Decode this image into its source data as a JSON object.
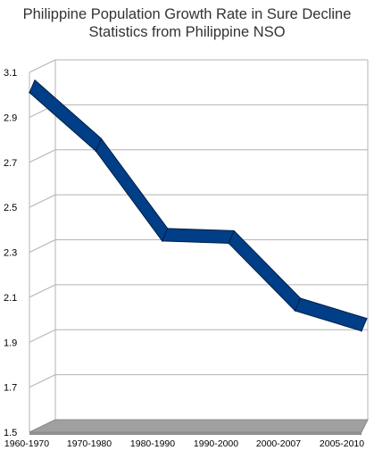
{
  "chart_data": {
    "type": "line",
    "title": "Philippine Population Growth Rate in Sure Decline",
    "subtitle": "Statistics from Philippine NSO",
    "categories": [
      "1960-1970",
      "1970-1980",
      "1980-1990",
      "1990-2000",
      "2000-2007",
      "2005-2010"
    ],
    "series": [
      {
        "values": [
          3.01,
          2.75,
          2.35,
          2.34,
          2.04,
          1.95
        ]
      }
    ],
    "y_ticks": [
      "1.5",
      "1.7",
      "1.9",
      "2.1",
      "2.3",
      "2.5",
      "2.7",
      "2.9",
      "3.1"
    ],
    "ylim": [
      1.5,
      3.1
    ],
    "grid": true,
    "style": "3d-ribbon",
    "colors": {
      "ribbon": "#003f87",
      "ribbon_edge": "#001c44",
      "floor": "#a0a0a0",
      "grid": "#b3b3b3"
    }
  }
}
